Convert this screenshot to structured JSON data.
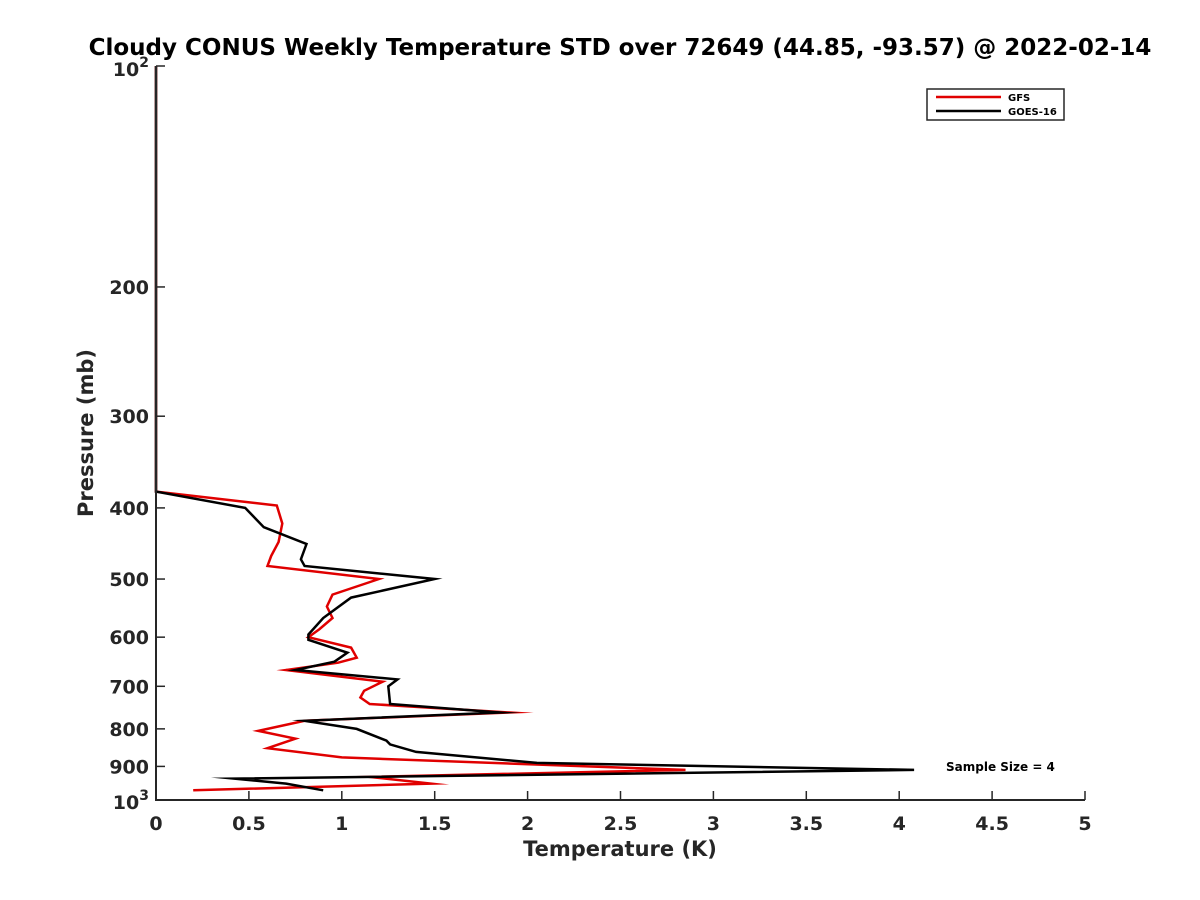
{
  "chart_data": {
    "type": "line",
    "title": "Cloudy CONUS Weekly Temperature STD over 72649 (44.85, -93.57) @ 2022-02-14",
    "xlabel": "Temperature (K)",
    "ylabel": "Pressure (mb)",
    "xlim": [
      0,
      5
    ],
    "ylim": [
      100,
      1000
    ],
    "yscale": "log",
    "yreversed": true,
    "x_ticks": [
      "0",
      "0.5",
      "1",
      "1.5",
      "2",
      "2.5",
      "3",
      "3.5",
      "4",
      "4.5",
      "5"
    ],
    "x_tick_values": [
      0,
      0.5,
      1,
      1.5,
      2,
      2.5,
      3,
      3.5,
      4,
      4.5,
      5
    ],
    "y_ticks": [
      "200",
      "300",
      "400",
      "500",
      "600",
      "700",
      "800",
      "900"
    ],
    "y_tick_values": [
      200,
      300,
      400,
      500,
      600,
      700,
      800,
      900
    ],
    "y_edge_ticks": {
      "top": {
        "base": "10",
        "exp": "2",
        "value": 100
      },
      "bottom": {
        "base": "10",
        "exp": "3",
        "value": 1000
      }
    },
    "grid": false,
    "legend_position": "top-right",
    "annotation": "Sample Size = 4",
    "series": [
      {
        "name": "GFS",
        "color": "#e00000",
        "points": [
          [
            0,
            100
          ],
          [
            0,
            380
          ],
          [
            0.65,
            397
          ],
          [
            0.68,
            420
          ],
          [
            0.66,
            445
          ],
          [
            0.62,
            465
          ],
          [
            0.6,
            480
          ],
          [
            1.2,
            500
          ],
          [
            0.95,
            525
          ],
          [
            0.92,
            545
          ],
          [
            0.95,
            565
          ],
          [
            0.88,
            585
          ],
          [
            0.82,
            600
          ],
          [
            1.05,
            620
          ],
          [
            1.08,
            640
          ],
          [
            0.98,
            650
          ],
          [
            0.7,
            665
          ],
          [
            1.22,
            690
          ],
          [
            1.12,
            710
          ],
          [
            1.1,
            725
          ],
          [
            1.15,
            740
          ],
          [
            1.9,
            760
          ],
          [
            0.8,
            780
          ],
          [
            0.55,
            805
          ],
          [
            0.75,
            825
          ],
          [
            0.6,
            850
          ],
          [
            1.0,
            875
          ],
          [
            2.85,
            910
          ],
          [
            1.15,
            930
          ],
          [
            1.48,
            950
          ],
          [
            0.2,
            970
          ]
        ]
      },
      {
        "name": "GOES-16",
        "color": "#000000",
        "points": [
          [
            0,
            100
          ],
          [
            0,
            380
          ],
          [
            0.48,
            400
          ],
          [
            0.58,
            425
          ],
          [
            0.81,
            448
          ],
          [
            0.78,
            470
          ],
          [
            0.8,
            480
          ],
          [
            1.5,
            500
          ],
          [
            1.05,
            530
          ],
          [
            0.9,
            565
          ],
          [
            0.82,
            595
          ],
          [
            0.82,
            605
          ],
          [
            1.03,
            630
          ],
          [
            0.96,
            648
          ],
          [
            0.75,
            665
          ],
          [
            1.3,
            685
          ],
          [
            1.25,
            700
          ],
          [
            1.26,
            740
          ],
          [
            1.85,
            760
          ],
          [
            0.8,
            780
          ],
          [
            1.08,
            800
          ],
          [
            1.24,
            830
          ],
          [
            1.26,
            840
          ],
          [
            1.4,
            860
          ],
          [
            2.05,
            890
          ],
          [
            4.08,
            910
          ],
          [
            0.42,
            935
          ],
          [
            0.7,
            950
          ],
          [
            0.9,
            970
          ]
        ]
      }
    ]
  }
}
